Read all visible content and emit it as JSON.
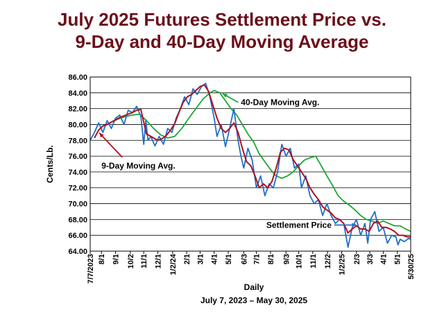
{
  "chart_data": {
    "type": "line",
    "title_line1": "July 2025 Futures Settlement Price vs.",
    "title_line2": "9-Day and 40-Day Moving Average",
    "xlabel": "Daily",
    "xlabel_sub": "July 7, 2023 – May 30, 2025",
    "ylabel": "Cents/Lb.",
    "ylim": [
      64,
      86
    ],
    "yticks": [
      "64.00",
      "66.00",
      "68.00",
      "70.00",
      "72.00",
      "74.00",
      "76.00",
      "78.00",
      "80.00",
      "82.00",
      "84.00",
      "86.00"
    ],
    "grid": "horizontal",
    "x_tick_labels": [
      "7/7/2023",
      "8/1",
      "9/1",
      "10/2",
      "11/1",
      "12/1",
      "1/2/24",
      "2/1",
      "3/1",
      "4/1",
      "5/1",
      "6/3",
      "7/1",
      "8/1",
      "9/3",
      "10/1",
      "11/1",
      "12/2",
      "1/2/25",
      "2/3",
      "3/3",
      "4/1",
      "5/1",
      "5/30/25"
    ],
    "x_tick_months": [
      0,
      0.8,
      1.8,
      2.85,
      3.8,
      4.8,
      5.85,
      6.85,
      7.8,
      8.8,
      9.8,
      10.9,
      11.8,
      12.8,
      13.9,
      14.8,
      15.8,
      16.85,
      17.85,
      18.9,
      19.85,
      20.8,
      21.8,
      22.75
    ],
    "colors": {
      "settlement": "#1f6fc5",
      "ma9": "#b01020",
      "ma40": "#19a832"
    },
    "series": [
      {
        "name": "Settlement Price",
        "role": "settlement",
        "x_month": [
          0,
          0.3,
          0.6,
          0.9,
          1.2,
          1.5,
          1.8,
          2.1,
          2.4,
          2.7,
          3.0,
          3.3,
          3.6,
          3.8,
          3.95,
          4.1,
          4.3,
          4.6,
          4.9,
          5.2,
          5.5,
          5.8,
          6.1,
          6.4,
          6.7,
          7.0,
          7.3,
          7.6,
          7.9,
          8.2,
          8.5,
          8.8,
          9.0,
          9.3,
          9.6,
          9.9,
          10.2,
          10.5,
          10.7,
          10.9,
          11.2,
          11.5,
          11.8,
          12.1,
          12.4,
          12.7,
          13.0,
          13.3,
          13.6,
          13.9,
          14.2,
          14.5,
          14.8,
          15.0,
          15.3,
          15.6,
          15.9,
          16.2,
          16.5,
          16.8,
          17.1,
          17.4,
          17.7,
          18.0,
          18.3,
          18.6,
          18.9,
          19.2,
          19.5,
          19.7,
          19.9,
          20.2,
          20.5,
          20.8,
          21.1,
          21.4,
          21.7,
          21.85,
          22.0,
          22.3,
          22.6,
          22.75
        ],
        "y": [
          78.0,
          79.0,
          80.2,
          79.0,
          80.5,
          79.5,
          80.8,
          81.2,
          80.0,
          81.8,
          81.5,
          82.3,
          81.0,
          77.5,
          80.5,
          78.0,
          78.5,
          77.3,
          78.5,
          77.5,
          79.5,
          79.0,
          80.8,
          82.0,
          83.5,
          82.5,
          84.5,
          83.8,
          84.8,
          85.2,
          83.5,
          80.8,
          78.5,
          80.0,
          77.2,
          79.5,
          82.0,
          78.0,
          76.0,
          74.5,
          77.0,
          75.5,
          72.0,
          73.5,
          71.0,
          72.5,
          72.0,
          74.0,
          77.5,
          76.0,
          77.0,
          74.5,
          75.0,
          72.0,
          73.5,
          71.0,
          70.0,
          70.5,
          68.5,
          70.0,
          68.5,
          67.5,
          68.0,
          67.5,
          64.5,
          67.0,
          68.0,
          66.0,
          67.5,
          65.0,
          68.0,
          69.0,
          66.5,
          67.0,
          65.0,
          66.0,
          65.8,
          64.8,
          65.5,
          65.2,
          65.6,
          65.5
        ]
      },
      {
        "name": "9-Day Moving Avg.",
        "role": "ma9",
        "x_month": [
          0.3,
          0.6,
          0.9,
          1.2,
          1.5,
          1.8,
          2.1,
          2.4,
          2.7,
          3.0,
          3.3,
          3.6,
          3.8,
          4.0,
          4.2,
          4.5,
          4.8,
          5.1,
          5.4,
          5.7,
          6.0,
          6.3,
          6.6,
          6.9,
          7.2,
          7.5,
          7.8,
          8.1,
          8.4,
          8.7,
          9.0,
          9.3,
          9.6,
          9.9,
          10.2,
          10.5,
          10.8,
          11.1,
          11.4,
          11.7,
          12.0,
          12.3,
          12.6,
          12.9,
          13.2,
          13.5,
          13.8,
          14.1,
          14.4,
          14.7,
          15.0,
          15.3,
          15.6,
          15.9,
          16.2,
          16.5,
          16.8,
          17.1,
          17.4,
          17.7,
          18.0,
          18.3,
          18.6,
          18.9,
          19.2,
          19.5,
          19.8,
          20.1,
          20.4,
          20.7,
          21.0,
          21.3,
          21.6,
          21.9,
          22.2,
          22.5,
          22.75
        ],
        "y": [
          78.3,
          79.3,
          79.8,
          80.0,
          80.3,
          80.6,
          80.9,
          81.1,
          81.3,
          81.5,
          81.8,
          81.9,
          80.3,
          78.8,
          78.6,
          78.3,
          78.0,
          78.2,
          78.6,
          79.3,
          80.1,
          81.5,
          82.8,
          83.5,
          83.8,
          84.3,
          84.8,
          85.0,
          84.2,
          82.5,
          80.8,
          79.5,
          79.0,
          79.5,
          80.2,
          79.0,
          77.0,
          75.3,
          74.8,
          73.5,
          72.0,
          72.5,
          72.0,
          72.8,
          74.5,
          76.5,
          77.0,
          76.8,
          75.6,
          74.8,
          74.0,
          73.2,
          72.0,
          71.2,
          70.5,
          69.6,
          69.2,
          68.8,
          68.2,
          68.0,
          67.5,
          66.3,
          66.8,
          67.2,
          66.8,
          66.8,
          66.5,
          67.5,
          67.8,
          67.0,
          67.0,
          66.8,
          66.5,
          66.0,
          66.0,
          65.8,
          65.8
        ]
      },
      {
        "name": "40-Day Moving Avg.",
        "role": "ma40",
        "x_month": [
          1.0,
          1.5,
          2.0,
          2.5,
          3.0,
          3.5,
          4.0,
          4.5,
          5.0,
          5.5,
          6.0,
          6.5,
          7.0,
          7.5,
          8.0,
          8.5,
          8.8,
          9.2,
          9.6,
          10.0,
          10.4,
          10.8,
          11.2,
          11.6,
          12.0,
          12.4,
          12.8,
          13.2,
          13.6,
          14.0,
          14.4,
          14.8,
          15.2,
          15.6,
          16.0,
          16.4,
          16.8,
          17.2,
          17.6,
          18.0,
          18.4,
          18.8,
          19.2,
          19.6,
          20.0,
          20.4,
          20.8,
          21.2,
          21.6,
          22.0,
          22.4,
          22.75
        ],
        "y": [
          79.8,
          80.3,
          80.7,
          81.0,
          81.2,
          81.3,
          80.5,
          79.5,
          78.7,
          78.3,
          78.5,
          79.5,
          80.8,
          82.0,
          83.2,
          84.0,
          84.3,
          84.0,
          83.0,
          82.0,
          81.2,
          80.0,
          78.8,
          77.8,
          76.3,
          75.3,
          74.3,
          73.5,
          73.2,
          73.5,
          74.0,
          74.8,
          75.5,
          75.8,
          76.0,
          74.8,
          73.5,
          72.3,
          71.0,
          70.3,
          69.8,
          69.2,
          68.5,
          68.0,
          67.8,
          67.5,
          67.8,
          67.5,
          67.2,
          67.2,
          66.8,
          66.5
        ]
      }
    ],
    "annotations": [
      {
        "text": "40-Day Moving Avg.",
        "series": "ma40",
        "at_month": 9.1,
        "at_y": 83.9,
        "text_month": 10.7,
        "text_y": 82.8
      },
      {
        "text": "9-Day Moving Avg.",
        "series": "ma9",
        "at_month": 0.5,
        "at_y": 79.2,
        "text_month": 0.8,
        "text_y": 74.8
      },
      {
        "text": "Settlement Price",
        "series": "settlement",
        "at_month": 19.0,
        "at_y": 67.3,
        "text_month": 12.5,
        "text_y": 67.3
      }
    ]
  }
}
